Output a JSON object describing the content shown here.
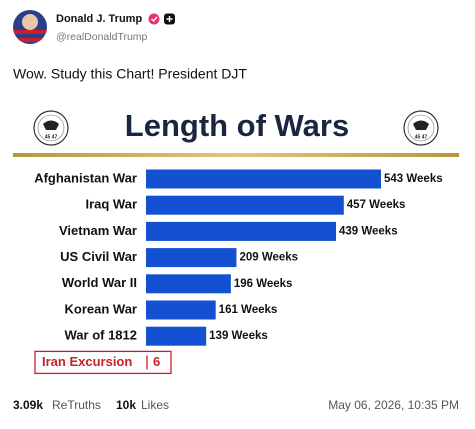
{
  "post": {
    "author": {
      "name": "Donald J. Trump",
      "handle": "@realDonaldTrump"
    },
    "text": "Wow. Study this Chart! President DJT",
    "stats": {
      "retruths": "3.09k",
      "retruths_label": "ReTruths",
      "likes": "10k",
      "likes_label": "Likes"
    },
    "timestamp": "May 06, 2026, 10:35 PM"
  },
  "chart_data": {
    "type": "bar",
    "orientation": "horizontal",
    "title": "Length of Wars",
    "seal_text": "45 47",
    "categories": [
      "Afghanistan War",
      "Iraq War",
      "Vietnam War",
      "US Civil War",
      "World War II",
      "Korean War",
      "War of 1812"
    ],
    "values": [
      543,
      457,
      439,
      209,
      196,
      161,
      139
    ],
    "value_labels": [
      "543 Weeks",
      "457 Weeks",
      "439 Weeks",
      "209 Weeks",
      "196 Weeks",
      "161 Weeks",
      "139 Weeks"
    ],
    "color": "#1450d2",
    "callout": {
      "category": "Iran Excursion",
      "value": 6,
      "color": "#c8202a"
    }
  }
}
